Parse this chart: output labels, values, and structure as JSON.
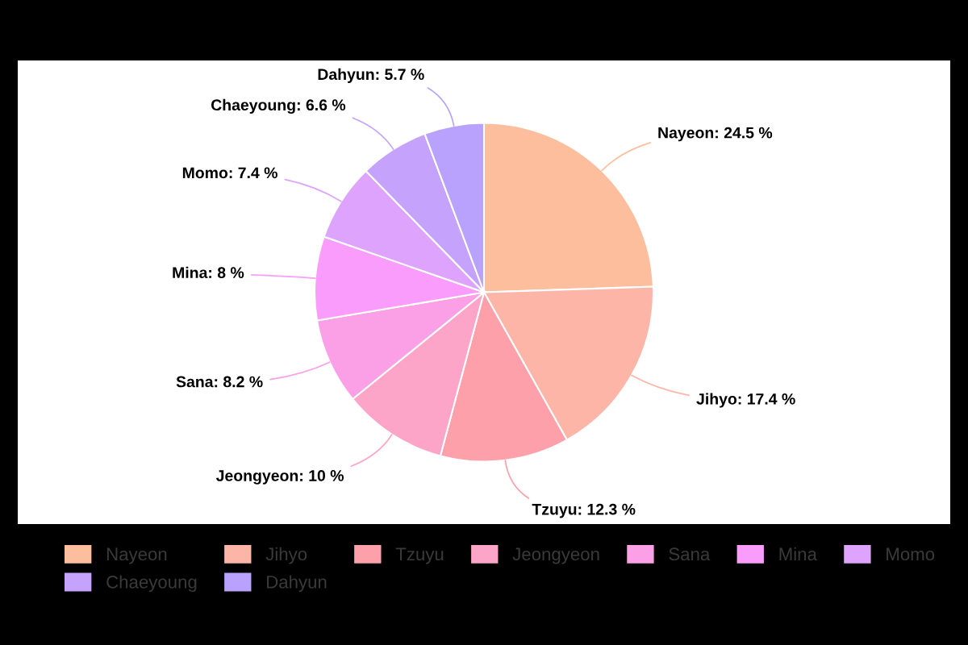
{
  "chart_data": {
    "type": "pie",
    "categories": [
      "Nayeon",
      "Jihyo",
      "Tzuyu",
      "Jeongyeon",
      "Sana",
      "Mina",
      "Momo",
      "Chaeyoung",
      "Dahyun"
    ],
    "values": [
      24.5,
      17.4,
      12.3,
      10,
      8.2,
      8,
      7.4,
      6.6,
      5.7
    ],
    "colors": [
      "#fdbe9e",
      "#fdb5a7",
      "#fda0aa",
      "#fda5c9",
      "#fba0e6",
      "#f99cfb",
      "#dea3fc",
      "#c5a2fc",
      "#b9a2fd"
    ],
    "value_labels": [
      "Nayeon: 24.5 %",
      "Jihyo: 17.4 %",
      "Tzuyu: 12.3 %",
      "Jeongyeon: 10 %",
      "Sana: 8.2 %",
      "Mina: 8 %",
      "Momo: 7.4 %",
      "Chaeyoung: 6.6 %",
      "Dahyun: 5.7 %"
    ],
    "legend": "bottom"
  }
}
